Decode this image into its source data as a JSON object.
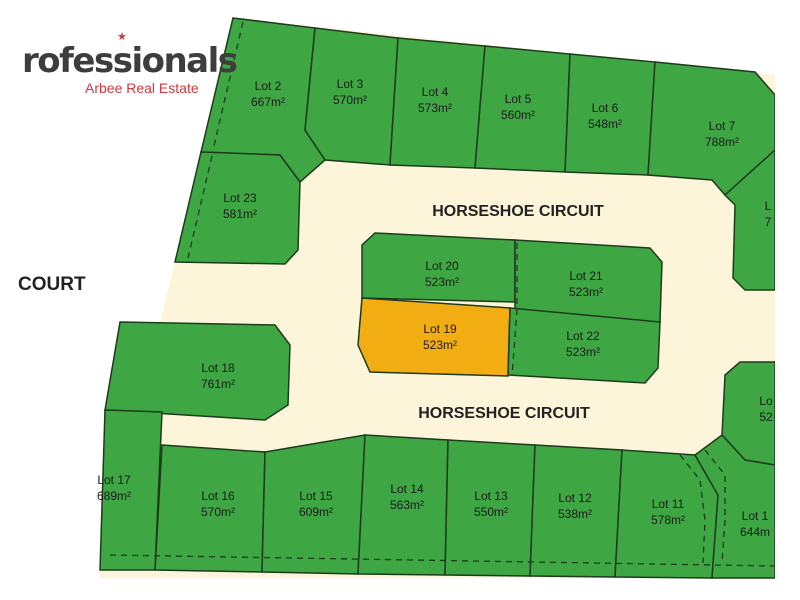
{
  "logo": {
    "main": "rofessionals",
    "sub": "Arbee Real Estate",
    "star": "★",
    "accent": "#d0383a"
  },
  "roads": {
    "top": "HORSESHOE CIRCUIT",
    "bottom": "HORSESHOE CIRCUIT",
    "left": "COURT"
  },
  "colors": {
    "lot": "#3fa644",
    "highlight": "#f2ad13",
    "road": "#fcf5d9",
    "outline": "#1d3b1d"
  },
  "lots": [
    {
      "name": "Lot 2",
      "area": "667m²"
    },
    {
      "name": "Lot 3",
      "area": "570m²"
    },
    {
      "name": "Lot 4",
      "area": "573m²"
    },
    {
      "name": "Lot 5",
      "area": "560m²"
    },
    {
      "name": "Lot 6",
      "area": "548m²"
    },
    {
      "name": "Lot 7",
      "area": "788m²"
    },
    {
      "name": "L",
      "area": "7"
    },
    {
      "name": "Lot 23",
      "area": "581m²"
    },
    {
      "name": "Lot 20",
      "area": "523m²"
    },
    {
      "name": "Lot 21",
      "area": "523m²"
    },
    {
      "name": "Lot 19",
      "area": "523m²",
      "highlighted": true
    },
    {
      "name": "Lot 22",
      "area": "523m²"
    },
    {
      "name": "Lot 18",
      "area": "761m²"
    },
    {
      "name": "Lo",
      "area": "52"
    },
    {
      "name": "Lot 17",
      "area": "689m²"
    },
    {
      "name": "Lot 16",
      "area": "570m²"
    },
    {
      "name": "Lot 15",
      "area": "609m²"
    },
    {
      "name": "Lot 14",
      "area": "563m²"
    },
    {
      "name": "Lot 13",
      "area": "550m²"
    },
    {
      "name": "Lot 12",
      "area": "538m²"
    },
    {
      "name": "Lot 11",
      "area": "578m²"
    },
    {
      "name": "Lot 1",
      "area": "644m"
    }
  ]
}
